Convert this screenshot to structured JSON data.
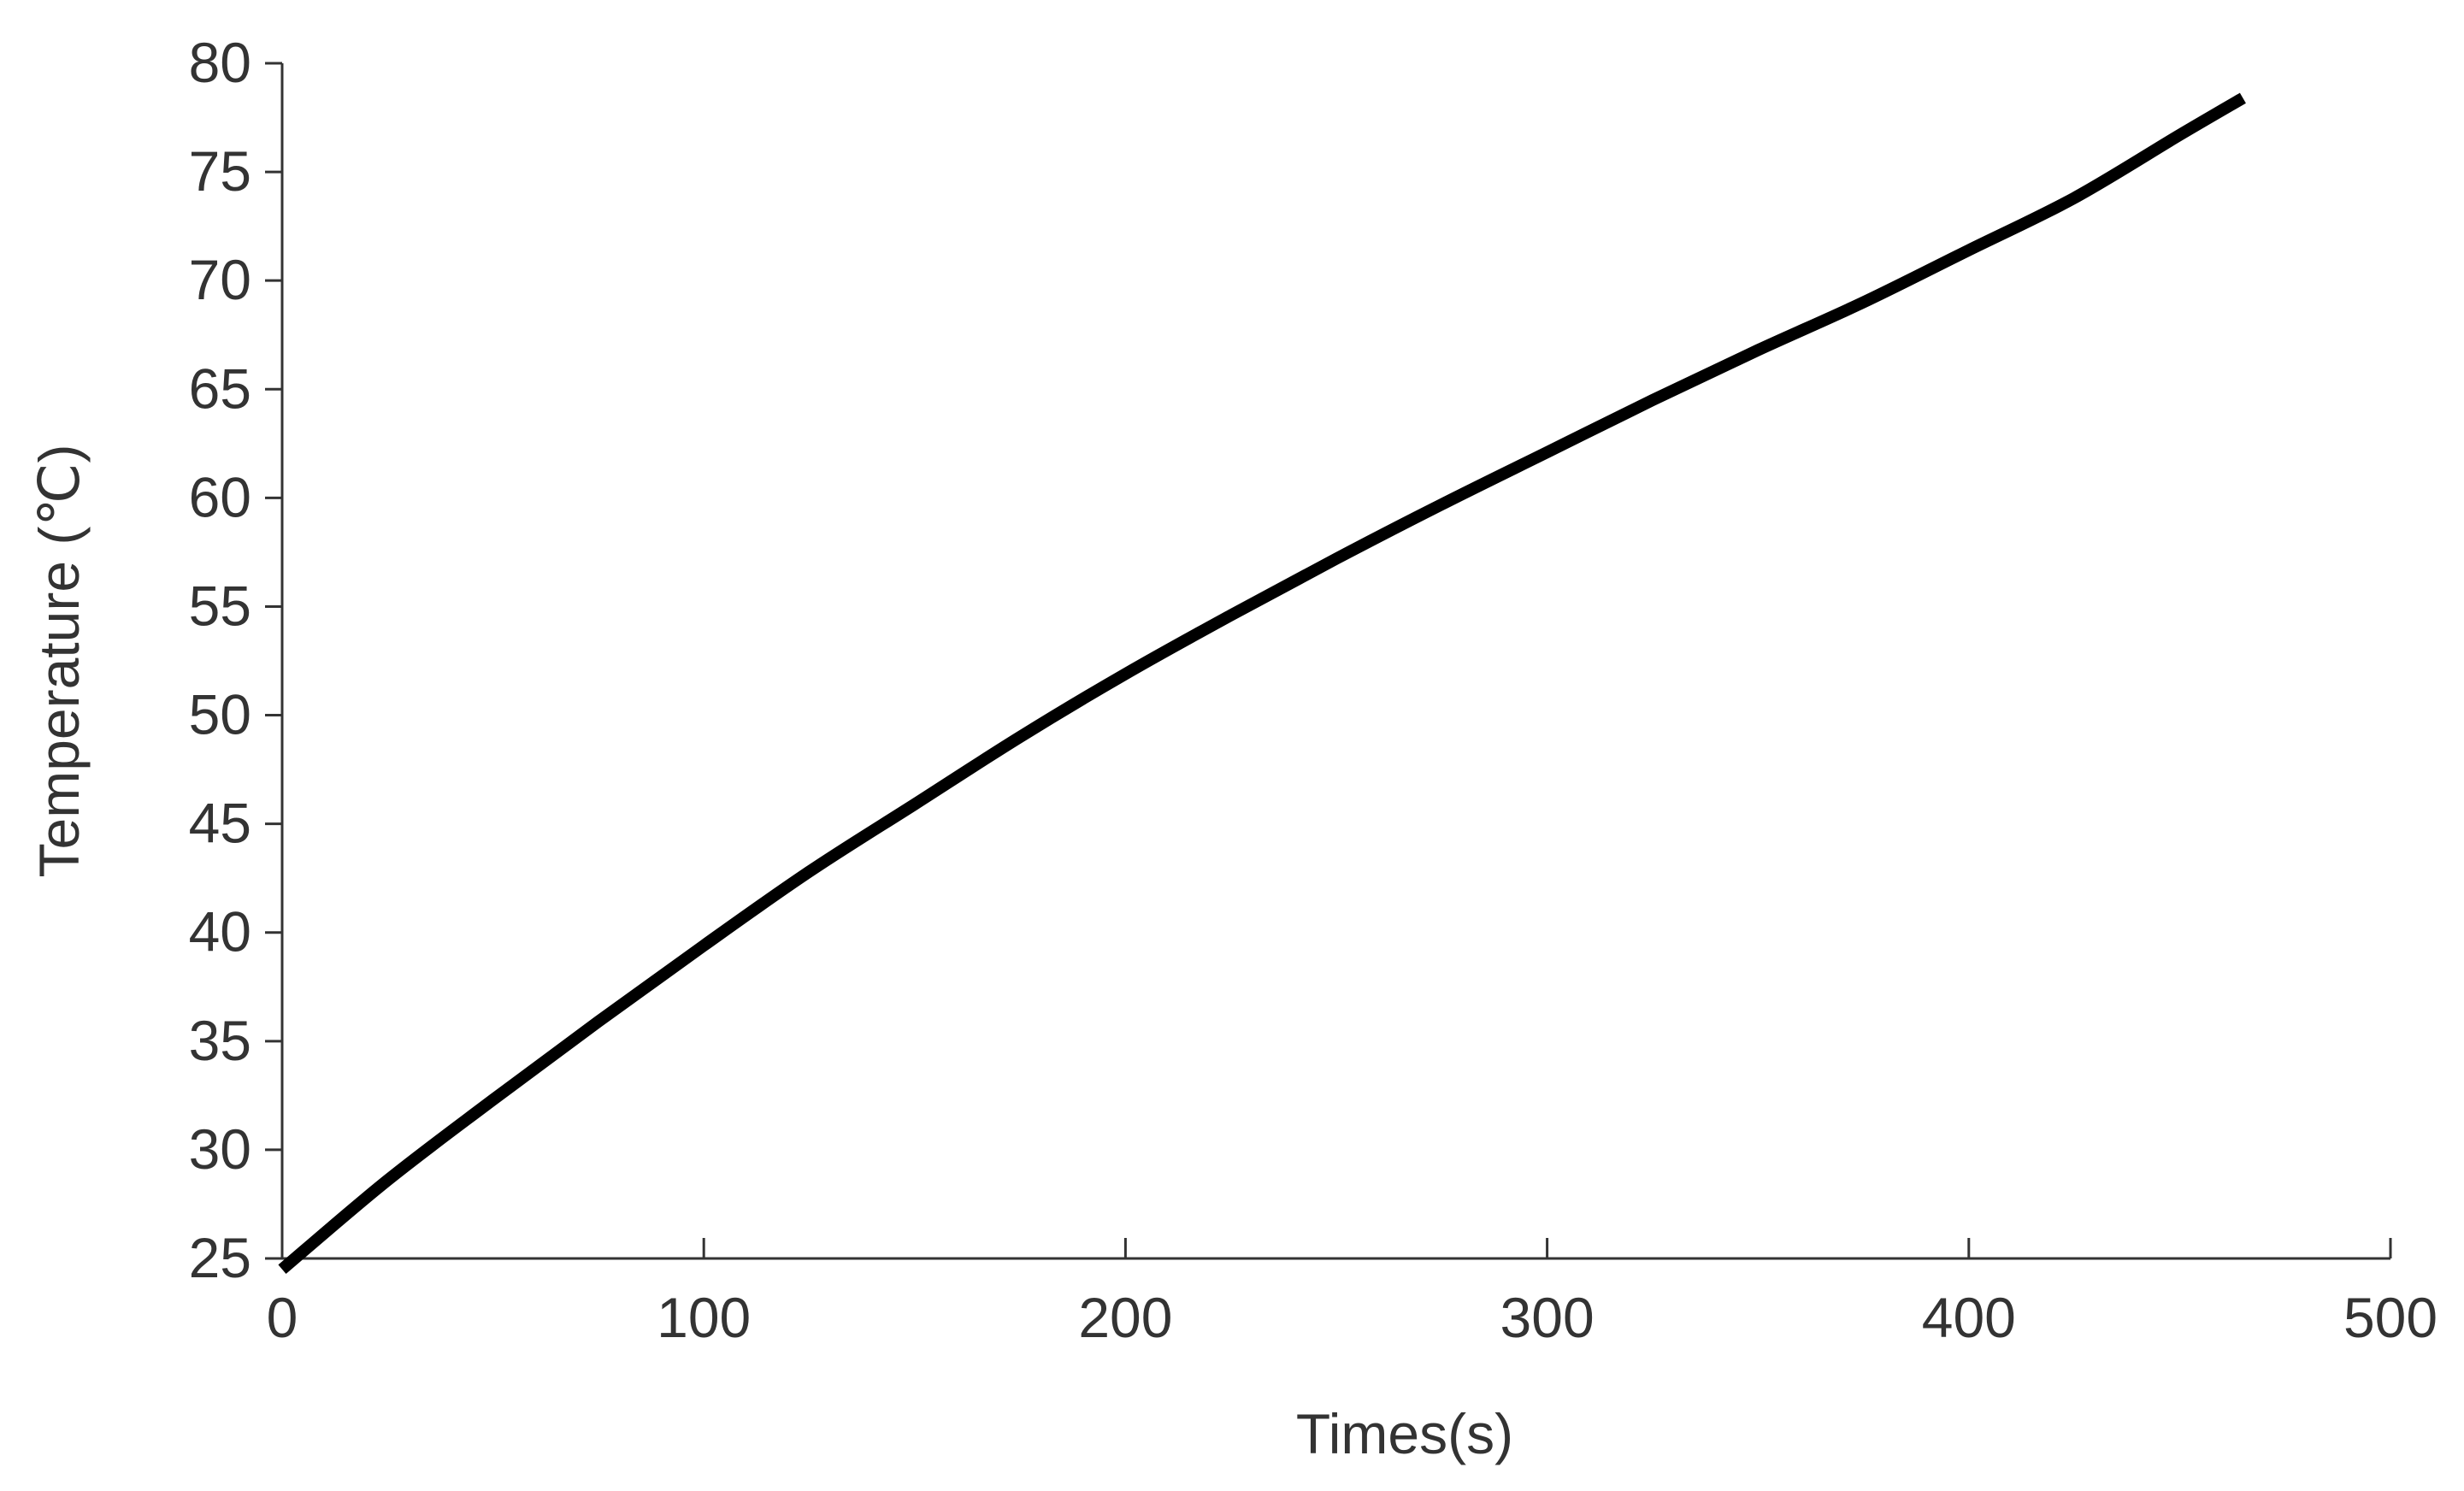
{
  "chart_data": {
    "type": "line",
    "title": "",
    "xlabel": "Times(s)",
    "ylabel": "Temperature (℃)",
    "xlim": [
      0,
      500
    ],
    "ylim": [
      25,
      80
    ],
    "x_ticks": [
      "0",
      "100",
      "200",
      "300",
      "400",
      "500"
    ],
    "y_ticks": [
      "25",
      "30",
      "35",
      "40",
      "45",
      "50",
      "55",
      "60",
      "65",
      "70",
      "75",
      "80"
    ],
    "grid": false,
    "legend": "none",
    "line_color": "#000000",
    "series": [
      {
        "x": [
          0,
          25,
          50,
          75,
          100,
          125,
          150,
          175,
          200,
          225,
          250,
          275,
          300,
          325,
          350,
          375,
          400,
          425,
          450,
          465
        ],
        "values": [
          24.5,
          28.6,
          32.3,
          35.9,
          39.4,
          42.8,
          45.9,
          49.0,
          51.9,
          54.6,
          57.2,
          59.7,
          62.1,
          64.5,
          66.8,
          69.0,
          71.4,
          73.8,
          76.7,
          78.4
        ]
      }
    ]
  }
}
